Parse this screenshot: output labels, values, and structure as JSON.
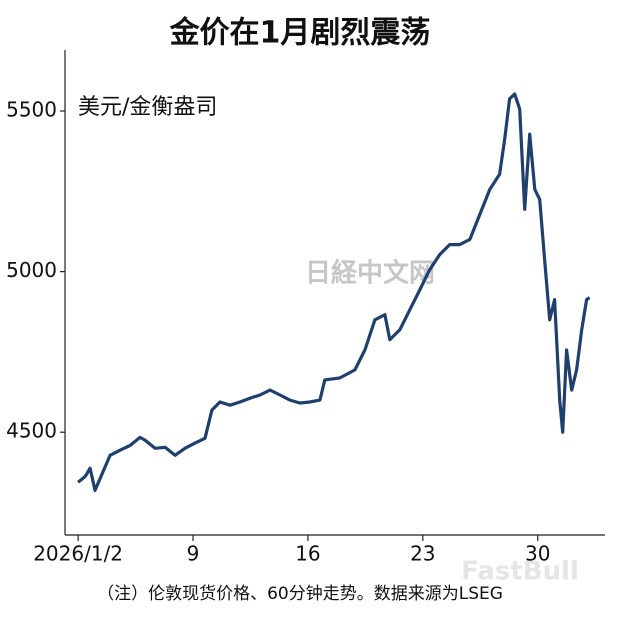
{
  "chart_data": {
    "type": "line",
    "title": "金价在1月剧烈震荡",
    "subtitle": "美元/金衡盎司",
    "note": "（注）伦敦现货价格、60分钟走势。数据来源为LSEG",
    "watermarks": [
      "日経中文网",
      "FastBull"
    ],
    "x": [
      2.0,
      2.43,
      2.73,
      3.03,
      3.34,
      3.95,
      4.56,
      5.17,
      5.77,
      6.08,
      6.69,
      7.3,
      7.9,
      8.51,
      9.12,
      9.73,
      10.15,
      10.64,
      11.25,
      11.86,
      12.47,
      13.08,
      13.69,
      14.3,
      14.9,
      15.51,
      16.12,
      16.73,
      17.03,
      17.95,
      18.86,
      19.47,
      20.08,
      20.69,
      20.99,
      21.6,
      22.21,
      22.82,
      23.42,
      24.03,
      24.64,
      25.25,
      25.86,
      26.47,
      27.08,
      27.68,
      27.99,
      28.29,
      28.6,
      28.9,
      29.21,
      29.51,
      29.82,
      30.12,
      30.42,
      30.73,
      31.03,
      31.34,
      31.52,
      31.76,
      32.07,
      32.37,
      32.68,
      32.98,
      33.16
    ],
    "series": [
      {
        "color": "#1f3f6e",
        "values": [
          4344,
          4362,
          4388,
          4319,
          4356,
          4428,
          4444,
          4459,
          4484,
          4475,
          4450,
          4453,
          4428,
          4450,
          4466,
          4481,
          4569,
          4594,
          4584,
          4594,
          4606,
          4616,
          4631,
          4616,
          4600,
          4591,
          4594,
          4600,
          4663,
          4669,
          4694,
          4756,
          4850,
          4866,
          4788,
          4819,
          4881,
          4944,
          5006,
          5053,
          5084,
          5084,
          5100,
          5178,
          5256,
          5303,
          5413,
          5538,
          5553,
          5506,
          5194,
          5428,
          5256,
          5225,
          5038,
          4850,
          4913,
          4600,
          4500,
          4756,
          4631,
          4694,
          4819,
          4913,
          4919
        ]
      }
    ],
    "xlim": [
      1.2,
      34.1
    ],
    "xticks": [
      {
        "value": 2,
        "label": "2026/1/2"
      },
      9,
      16,
      23,
      30
    ],
    "ylim": [
      4180,
      5690
    ],
    "yticks": [
      4500,
      5000,
      5500
    ],
    "grid": false
  }
}
